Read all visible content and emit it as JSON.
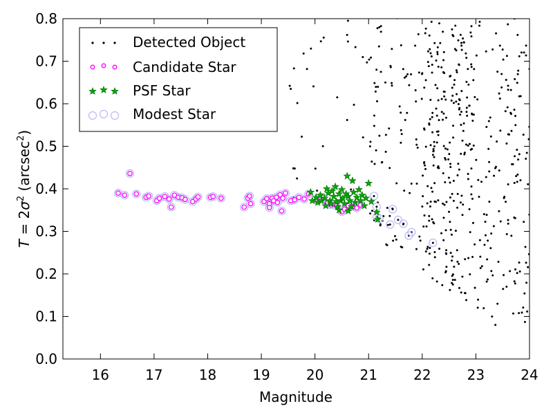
{
  "chart_data": {
    "type": "scatter",
    "xlabel": "Magnitude",
    "ylabel": "T = 2σ² (arcsec²)",
    "xlim": [
      15.3,
      24.0
    ],
    "ylim": [
      0.0,
      0.8
    ],
    "xticks": [
      16,
      17,
      18,
      19,
      20,
      21,
      22,
      23,
      24
    ],
    "yticks": [
      0.0,
      0.1,
      0.2,
      0.3,
      0.4,
      0.5,
      0.6,
      0.7,
      0.8
    ],
    "grid": false,
    "legend_position": "top-left",
    "series": [
      {
        "name": "Detected Object",
        "color": "#000000",
        "marker": "dot",
        "generator": {
          "seed": 7,
          "n_total": 700
        }
      },
      {
        "name": "Candidate Star",
        "color": "#ff00ff",
        "marker": "circle",
        "points": [
          [
            16.33,
            0.39
          ],
          [
            16.45,
            0.385
          ],
          [
            16.55,
            0.436
          ],
          [
            16.67,
            0.388
          ],
          [
            16.85,
            0.38
          ],
          [
            16.9,
            0.383
          ],
          [
            17.05,
            0.372
          ],
          [
            17.1,
            0.378
          ],
          [
            17.2,
            0.382
          ],
          [
            17.28,
            0.376
          ],
          [
            17.32,
            0.357
          ],
          [
            17.38,
            0.385
          ],
          [
            17.45,
            0.38
          ],
          [
            17.52,
            0.379
          ],
          [
            17.58,
            0.375
          ],
          [
            17.72,
            0.37
          ],
          [
            17.78,
            0.376
          ],
          [
            17.82,
            0.381
          ],
          [
            18.05,
            0.38
          ],
          [
            18.1,
            0.382
          ],
          [
            18.25,
            0.378
          ],
          [
            18.68,
            0.357
          ],
          [
            18.75,
            0.378
          ],
          [
            18.78,
            0.383
          ],
          [
            18.8,
            0.365
          ],
          [
            19.05,
            0.37
          ],
          [
            19.1,
            0.377
          ],
          [
            19.15,
            0.365
          ],
          [
            19.15,
            0.356
          ],
          [
            19.2,
            0.378
          ],
          [
            19.23,
            0.372
          ],
          [
            19.28,
            0.38
          ],
          [
            19.3,
            0.368
          ],
          [
            19.35,
            0.386
          ],
          [
            19.38,
            0.348
          ],
          [
            19.4,
            0.378
          ],
          [
            19.45,
            0.39
          ],
          [
            19.55,
            0.372
          ],
          [
            19.62,
            0.374
          ],
          [
            19.7,
            0.38
          ],
          [
            19.8,
            0.376
          ],
          [
            19.88,
            0.388
          ],
          [
            20.05,
            0.372
          ],
          [
            20.15,
            0.38
          ],
          [
            20.22,
            0.366
          ],
          [
            20.3,
            0.362
          ],
          [
            20.4,
            0.36
          ],
          [
            20.5,
            0.346
          ],
          [
            20.55,
            0.352
          ],
          [
            20.62,
            0.36
          ],
          [
            20.7,
            0.358
          ],
          [
            20.78,
            0.355
          ],
          [
            20.85,
            0.362
          ]
        ]
      },
      {
        "name": "PSF Star",
        "color": "#00aa00",
        "marker": "star",
        "points": [
          [
            19.92,
            0.392
          ],
          [
            19.95,
            0.372
          ],
          [
            20.02,
            0.38
          ],
          [
            20.05,
            0.368
          ],
          [
            20.1,
            0.385
          ],
          [
            20.12,
            0.372
          ],
          [
            20.18,
            0.378
          ],
          [
            20.22,
            0.4
          ],
          [
            20.25,
            0.39
          ],
          [
            20.28,
            0.372
          ],
          [
            20.3,
            0.365
          ],
          [
            20.32,
            0.395
          ],
          [
            20.35,
            0.382
          ],
          [
            20.38,
            0.405
          ],
          [
            20.4,
            0.37
          ],
          [
            20.42,
            0.358
          ],
          [
            20.45,
            0.388
          ],
          [
            20.48,
            0.372
          ],
          [
            20.5,
            0.398
          ],
          [
            20.52,
            0.378
          ],
          [
            20.55,
            0.365
          ],
          [
            20.58,
            0.388
          ],
          [
            20.6,
            0.43
          ],
          [
            20.62,
            0.382
          ],
          [
            20.65,
            0.372
          ],
          [
            20.68,
            0.358
          ],
          [
            20.7,
            0.419
          ],
          [
            20.72,
            0.392
          ],
          [
            20.75,
            0.368
          ],
          [
            20.78,
            0.38
          ],
          [
            20.82,
            0.398
          ],
          [
            20.85,
            0.372
          ],
          [
            20.88,
            0.385
          ],
          [
            20.92,
            0.36
          ],
          [
            20.95,
            0.378
          ],
          [
            21.0,
            0.413
          ],
          [
            21.05,
            0.37
          ],
          [
            21.15,
            0.345
          ],
          [
            21.17,
            0.328
          ],
          [
            20.2,
            0.36
          ],
          [
            20.45,
            0.35
          ],
          [
            20.62,
            0.348
          ]
        ]
      },
      {
        "name": "Modest Star",
        "color": "#b8b8f5",
        "marker": "open-circle",
        "points": [
          [
            16.33,
            0.39
          ],
          [
            16.45,
            0.385
          ],
          [
            16.55,
            0.436
          ],
          [
            16.67,
            0.388
          ],
          [
            16.85,
            0.38
          ],
          [
            16.9,
            0.383
          ],
          [
            17.05,
            0.372
          ],
          [
            17.1,
            0.378
          ],
          [
            17.2,
            0.382
          ],
          [
            17.28,
            0.376
          ],
          [
            17.32,
            0.357
          ],
          [
            17.38,
            0.385
          ],
          [
            17.45,
            0.38
          ],
          [
            17.52,
            0.379
          ],
          [
            17.58,
            0.375
          ],
          [
            17.72,
            0.37
          ],
          [
            17.78,
            0.376
          ],
          [
            17.82,
            0.381
          ],
          [
            18.05,
            0.38
          ],
          [
            18.1,
            0.382
          ],
          [
            18.25,
            0.378
          ],
          [
            18.68,
            0.357
          ],
          [
            18.75,
            0.378
          ],
          [
            18.78,
            0.383
          ],
          [
            18.8,
            0.365
          ],
          [
            19.05,
            0.37
          ],
          [
            19.1,
            0.377
          ],
          [
            19.15,
            0.365
          ],
          [
            19.15,
            0.356
          ],
          [
            19.2,
            0.378
          ],
          [
            19.23,
            0.372
          ],
          [
            19.28,
            0.38
          ],
          [
            19.3,
            0.368
          ],
          [
            19.35,
            0.386
          ],
          [
            19.38,
            0.348
          ],
          [
            19.4,
            0.378
          ],
          [
            19.45,
            0.39
          ],
          [
            19.55,
            0.372
          ],
          [
            19.62,
            0.374
          ],
          [
            19.7,
            0.38
          ],
          [
            19.8,
            0.376
          ],
          [
            19.88,
            0.388
          ],
          [
            20.05,
            0.372
          ],
          [
            20.15,
            0.38
          ],
          [
            20.22,
            0.366
          ],
          [
            20.3,
            0.362
          ],
          [
            20.4,
            0.36
          ],
          [
            20.5,
            0.346
          ],
          [
            20.55,
            0.352
          ],
          [
            20.62,
            0.36
          ],
          [
            20.7,
            0.358
          ],
          [
            20.78,
            0.355
          ],
          [
            20.85,
            0.362
          ],
          [
            21.1,
            0.383
          ],
          [
            21.15,
            0.358
          ],
          [
            21.15,
            0.335
          ],
          [
            21.2,
            0.33
          ],
          [
            21.4,
            0.316
          ],
          [
            21.45,
            0.352
          ],
          [
            21.55,
            0.327
          ],
          [
            21.65,
            0.318
          ],
          [
            21.75,
            0.29
          ],
          [
            21.8,
            0.298
          ],
          [
            22.2,
            0.273
          ]
        ]
      }
    ]
  }
}
